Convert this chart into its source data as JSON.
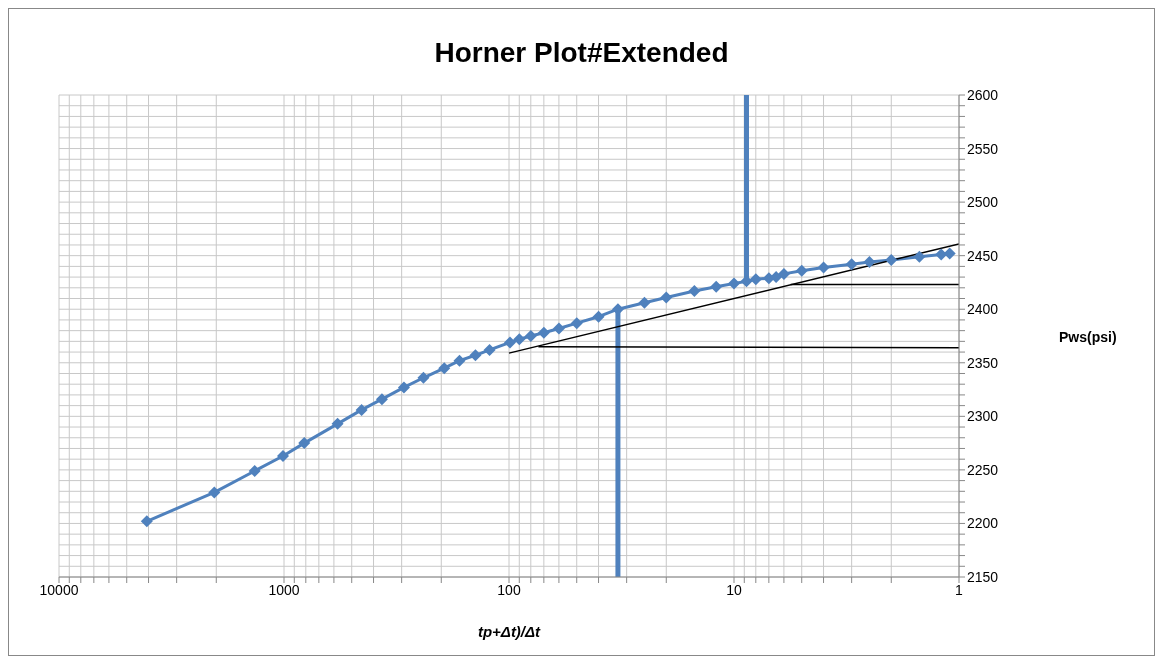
{
  "chart_data": {
    "type": "line",
    "title": "Horner Plot#Extended",
    "xlabel": "tp+Δt)/Δt",
    "ylabel": "Pws(psi)",
    "log": "x",
    "grid": true,
    "line_style": "solid",
    "xlim": [
      10000,
      1
    ],
    "ylim": [
      2150,
      2600
    ],
    "xticks": [
      1,
      {
        "value": 2,
        "label": null
      },
      {
        "value": 3,
        "label": null
      },
      {
        "value": 4,
        "label": null
      },
      {
        "value": 5,
        "label": null
      },
      {
        "value": 6,
        "label": null
      },
      {
        "value": 7,
        "label": null
      },
      {
        "value": 8,
        "label": null
      },
      {
        "value": 9,
        "label": null
      },
      10,
      {
        "value": 20,
        "label": null
      },
      {
        "value": 30,
        "label": null
      },
      {
        "value": 40,
        "label": null
      },
      {
        "value": 50,
        "label": null
      },
      {
        "value": 60,
        "label": null
      },
      {
        "value": 70,
        "label": null
      },
      {
        "value": 80,
        "label": null
      },
      {
        "value": 90,
        "label": null
      },
      100,
      {
        "value": 200,
        "label": null
      },
      {
        "value": 300,
        "label": null
      },
      {
        "value": 400,
        "label": null
      },
      {
        "value": 500,
        "label": null
      },
      {
        "value": 600,
        "label": null
      },
      {
        "value": 700,
        "label": null
      },
      {
        "value": 800,
        "label": null
      },
      {
        "value": 900,
        "label": null
      },
      1000,
      {
        "value": 2000,
        "label": null
      },
      {
        "value": 3000,
        "label": null
      },
      {
        "value": 4000,
        "label": null
      },
      {
        "value": 5000,
        "label": null
      },
      {
        "value": 6000,
        "label": null
      },
      {
        "value": 7000,
        "label": null
      },
      {
        "value": 8000,
        "label": null
      },
      {
        "value": 9000,
        "label": null
      },
      10000
    ],
    "yticks": [
      2150,
      {
        "value": 2160,
        "label": null
      },
      {
        "value": 2170,
        "label": null
      },
      {
        "value": 2180,
        "label": null
      },
      {
        "value": 2190,
        "label": null
      },
      2200,
      {
        "value": 2210,
        "label": null
      },
      {
        "value": 2220,
        "label": null
      },
      {
        "value": 2230,
        "label": null
      },
      {
        "value": 2240,
        "label": null
      },
      2250,
      {
        "value": 2260,
        "label": null
      },
      {
        "value": 2270,
        "label": null
      },
      {
        "value": 2280,
        "label": null
      },
      {
        "value": 2290,
        "label": null
      },
      2300,
      {
        "value": 2310,
        "label": null
      },
      {
        "value": 2320,
        "label": null
      },
      {
        "value": 2330,
        "label": null
      },
      {
        "value": 2340,
        "label": null
      },
      2350,
      {
        "value": 2360,
        "label": null
      },
      {
        "value": 2370,
        "label": null
      },
      {
        "value": 2380,
        "label": null
      },
      {
        "value": 2390,
        "label": null
      },
      2400,
      {
        "value": 2410,
        "label": null
      },
      {
        "value": 2420,
        "label": null
      },
      {
        "value": 2430,
        "label": null
      },
      {
        "value": 2440,
        "label": null
      },
      2450,
      {
        "value": 2460,
        "label": null
      },
      {
        "value": 2470,
        "label": null
      },
      {
        "value": 2480,
        "label": null
      },
      {
        "value": 2490,
        "label": null
      },
      2500,
      {
        "value": 2510,
        "label": null
      },
      {
        "value": 2520,
        "label": null
      },
      {
        "value": 2530,
        "label": null
      },
      {
        "value": 2540,
        "label": null
      },
      2550,
      {
        "value": 2560,
        "label": null
      },
      {
        "value": 2570,
        "label": null
      },
      {
        "value": 2580,
        "label": null
      },
      {
        "value": 2590,
        "label": null
      },
      2600
    ],
    "series": [
      {
        "color": "#4f81bd",
        "marker": "diamond",
        "x": [
          4070,
          2040,
          1350,
          1010,
          813,
          578,
          452,
          367,
          293,
          240,
          194,
          166,
          141,
          122,
          99,
          90,
          80,
          70,
          60,
          50,
          40,
          32.8,
          25,
          20,
          15,
          12,
          10,
          8.8,
          8,
          7,
          6.5,
          6,
          5,
          4,
          3,
          2.5,
          2,
          1.5,
          1.2,
          1.1
        ],
        "values": [
          2202,
          2229,
          2249,
          2263,
          2275,
          2293,
          2306,
          2316,
          2327,
          2336,
          2345,
          2352,
          2357,
          2362,
          2369,
          2372,
          2375,
          2378,
          2382,
          2387,
          2393,
          2400,
          2406,
          2411,
          2417,
          2421,
          2424,
          2426,
          2428,
          2429,
          2430,
          2433,
          2436,
          2439,
          2442,
          2444,
          2446,
          2449,
          2451,
          2452
        ]
      },
      {
        "color": "#4f81bd",
        "marker": "none",
        "x": [
          32.8,
          32.8
        ],
        "values": [
          2150,
          2400
        ]
      },
      {
        "color": "#4f81bd",
        "marker": "none",
        "x": [
          8.8,
          8.8
        ],
        "values": [
          2426,
          2600
        ]
      },
      {
        "color": "#000000",
        "marker": "none",
        "x": [
          100,
          1
        ],
        "values": [
          2359,
          2461
        ]
      },
      {
        "color": "#000000",
        "marker": "none",
        "x": [
          74,
          1
        ],
        "values": [
          2365,
          2364
        ]
      },
      {
        "color": "#000000",
        "marker": "none",
        "x": [
          5.6,
          1
        ],
        "values": [
          2423,
          2423
        ]
      }
    ]
  }
}
